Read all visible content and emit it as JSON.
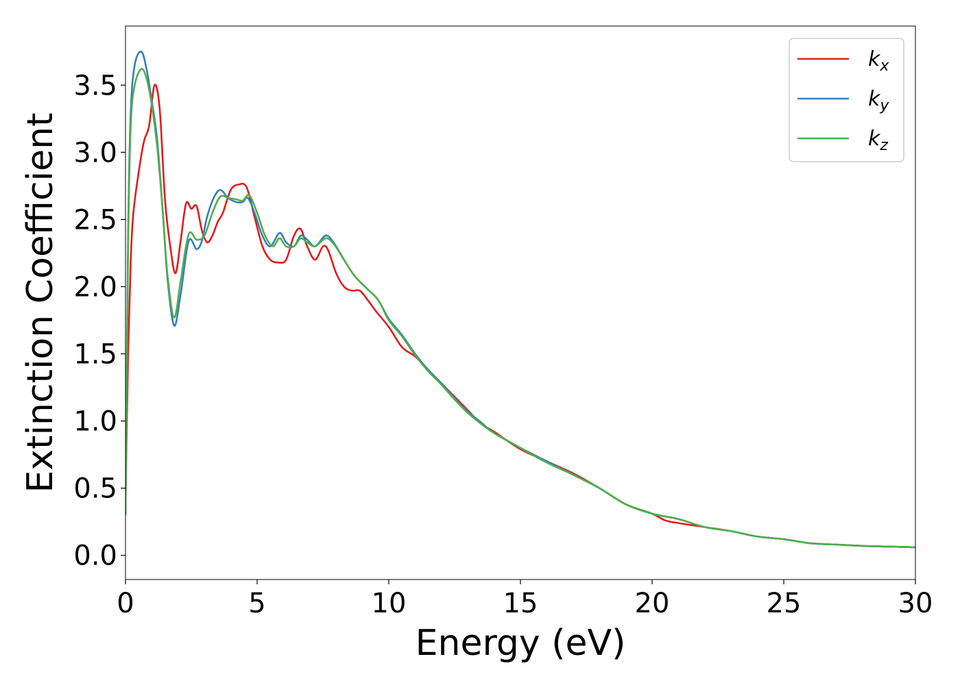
{
  "chart_data": {
    "type": "line",
    "xlabel": "Energy (eV)",
    "ylabel": "Extinction Coefficient",
    "xlim": [
      0,
      30
    ],
    "ylim": [
      -0.18,
      3.94
    ],
    "xticks": [
      0,
      5,
      10,
      15,
      20,
      25,
      30
    ],
    "xtick_labels": [
      "0",
      "5",
      "10",
      "15",
      "20",
      "25",
      "30"
    ],
    "yticks": [
      0.0,
      0.5,
      1.0,
      1.5,
      2.0,
      2.5,
      3.0,
      3.5
    ],
    "ytick_labels": [
      "0.0",
      "0.5",
      "1.0",
      "1.5",
      "2.0",
      "2.5",
      "3.0",
      "3.5"
    ],
    "grid": false,
    "legend_position": "top-right",
    "series": [
      {
        "name": "k_x",
        "label_base": "k",
        "label_sub": "x",
        "color": "#e41a1c",
        "x": [
          0,
          0.1,
          0.2,
          0.3,
          0.5,
          0.7,
          0.9,
          1.1,
          1.3,
          1.5,
          1.7,
          1.9,
          2.1,
          2.3,
          2.5,
          2.7,
          2.9,
          3.1,
          3.3,
          3.5,
          3.7,
          4.0,
          4.3,
          4.6,
          4.9,
          5.2,
          5.5,
          5.8,
          6.1,
          6.4,
          6.65,
          6.9,
          7.2,
          7.5,
          7.7,
          8.0,
          8.3,
          8.6,
          8.9,
          9.2,
          9.5,
          10.0,
          10.5,
          11.0,
          11.5,
          12.0,
          12.5,
          13.0,
          13.5,
          14.0,
          15.0,
          16.0,
          17.0,
          18.0,
          19.0,
          20.0,
          20.5,
          21.0,
          22.0,
          23.0,
          24.0,
          25.0,
          26.0,
          27.0,
          28.0,
          29.0,
          30.0
        ],
        "y": [
          0.4,
          1.5,
          2.2,
          2.55,
          2.85,
          3.08,
          3.2,
          3.5,
          3.32,
          2.65,
          2.3,
          2.1,
          2.35,
          2.62,
          2.58,
          2.6,
          2.42,
          2.33,
          2.38,
          2.48,
          2.55,
          2.72,
          2.76,
          2.74,
          2.52,
          2.3,
          2.2,
          2.18,
          2.2,
          2.38,
          2.43,
          2.3,
          2.2,
          2.3,
          2.27,
          2.1,
          2.0,
          1.97,
          1.97,
          1.9,
          1.82,
          1.7,
          1.55,
          1.48,
          1.38,
          1.28,
          1.18,
          1.08,
          0.98,
          0.92,
          0.79,
          0.7,
          0.61,
          0.5,
          0.38,
          0.31,
          0.26,
          0.24,
          0.21,
          0.18,
          0.14,
          0.12,
          0.09,
          0.08,
          0.07,
          0.065,
          0.06
        ]
      },
      {
        "name": "k_y",
        "label_base": "k",
        "label_sub": "y",
        "color": "#377eb8",
        "x": [
          0,
          0.1,
          0.2,
          0.35,
          0.6,
          0.8,
          1.0,
          1.2,
          1.4,
          1.6,
          1.85,
          2.1,
          2.4,
          2.7,
          2.9,
          3.1,
          3.35,
          3.6,
          3.9,
          4.2,
          4.45,
          4.65,
          4.9,
          5.2,
          5.5,
          5.85,
          6.1,
          6.4,
          6.65,
          6.9,
          7.2,
          7.6,
          7.9,
          8.3,
          8.7,
          9.2,
          9.6,
          10.0,
          10.5,
          11.0,
          11.5,
          12.0,
          12.5,
          13.0,
          13.5,
          14.0,
          15.0,
          16.0,
          17.0,
          18.0,
          19.0,
          20.0,
          21.0,
          22.0,
          23.0,
          24.0,
          25.0,
          26.0,
          27.0,
          28.0,
          29.0,
          30.0
        ],
        "y": [
          0.3,
          2.4,
          3.3,
          3.65,
          3.75,
          3.62,
          3.38,
          3.1,
          2.6,
          2.05,
          1.71,
          1.95,
          2.34,
          2.28,
          2.34,
          2.52,
          2.66,
          2.72,
          2.66,
          2.63,
          2.63,
          2.66,
          2.55,
          2.38,
          2.3,
          2.4,
          2.33,
          2.3,
          2.38,
          2.35,
          2.3,
          2.38,
          2.33,
          2.2,
          2.08,
          1.98,
          1.9,
          1.76,
          1.64,
          1.5,
          1.38,
          1.28,
          1.17,
          1.07,
          0.99,
          0.91,
          0.8,
          0.7,
          0.6,
          0.5,
          0.38,
          0.31,
          0.27,
          0.21,
          0.18,
          0.14,
          0.12,
          0.09,
          0.08,
          0.07,
          0.065,
          0.06
        ]
      },
      {
        "name": "k_z",
        "label_base": "k",
        "label_sub": "z",
        "color": "#4daf4a",
        "x": [
          0,
          0.1,
          0.2,
          0.35,
          0.6,
          0.8,
          1.0,
          1.2,
          1.4,
          1.6,
          1.85,
          2.1,
          2.4,
          2.7,
          3.0,
          3.3,
          3.6,
          3.9,
          4.2,
          4.45,
          4.7,
          5.0,
          5.3,
          5.6,
          5.85,
          6.1,
          6.4,
          6.65,
          6.9,
          7.2,
          7.6,
          7.9,
          8.3,
          8.7,
          9.2,
          9.6,
          10.0,
          10.5,
          11.0,
          11.5,
          12.0,
          12.5,
          13.0,
          13.5,
          14.0,
          15.0,
          16.0,
          17.0,
          18.0,
          19.0,
          20.0,
          21.0,
          22.0,
          23.0,
          24.0,
          25.0,
          26.0,
          27.0,
          28.0,
          29.0,
          30.0
        ],
        "y": [
          0.3,
          2.3,
          3.2,
          3.5,
          3.62,
          3.55,
          3.35,
          3.05,
          2.6,
          2.08,
          1.77,
          2.05,
          2.39,
          2.35,
          2.38,
          2.55,
          2.67,
          2.66,
          2.65,
          2.64,
          2.68,
          2.55,
          2.38,
          2.3,
          2.36,
          2.3,
          2.3,
          2.36,
          2.33,
          2.3,
          2.36,
          2.32,
          2.2,
          2.08,
          1.98,
          1.9,
          1.75,
          1.63,
          1.49,
          1.37,
          1.27,
          1.16,
          1.06,
          0.98,
          0.91,
          0.8,
          0.69,
          0.6,
          0.5,
          0.38,
          0.31,
          0.27,
          0.21,
          0.18,
          0.14,
          0.12,
          0.09,
          0.08,
          0.07,
          0.065,
          0.06
        ]
      }
    ]
  }
}
